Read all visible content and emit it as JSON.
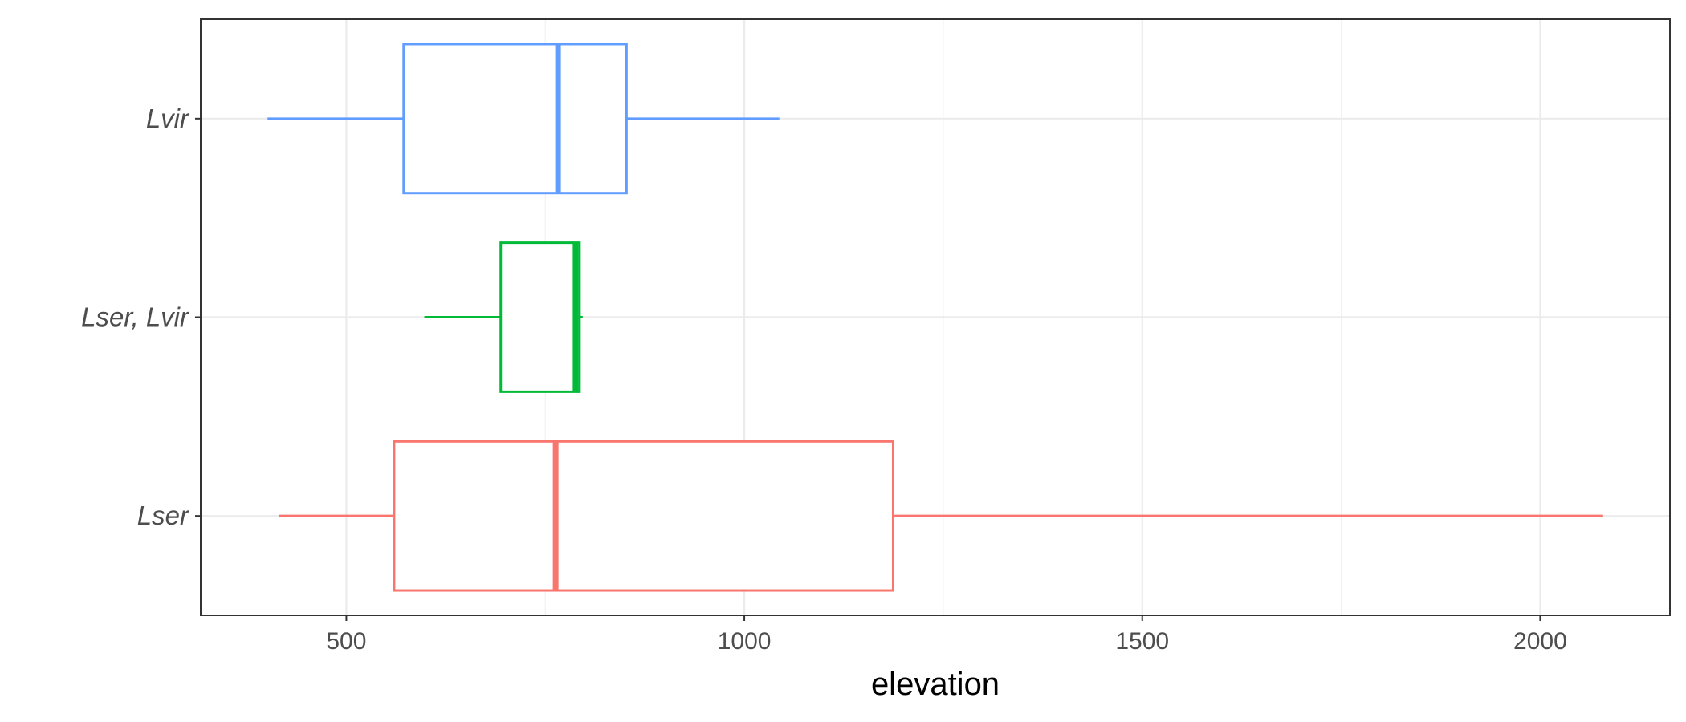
{
  "chart_data": {
    "type": "boxplot",
    "orientation": "horizontal",
    "xlabel": "elevation",
    "ylabel": "",
    "xlim": [
      317,
      2163
    ],
    "x_ticks": [
      500,
      1000,
      1500,
      2000
    ],
    "grid": true,
    "legend": "none",
    "categories": [
      "Lser",
      "Lser, Lvir",
      "Lvir"
    ],
    "series": [
      {
        "category": "Lser",
        "color": "#F8766D",
        "whisker_low": 415,
        "q1": 560,
        "median": 763,
        "q3": 1187,
        "whisker_high": 2078
      },
      {
        "category": "Lser, Lvir",
        "color": "#00BA38",
        "whisker_low": 598,
        "q1": 694,
        "median": 788,
        "q3": 793,
        "whisker_high": 797
      },
      {
        "category": "Lvir",
        "color": "#619CFF",
        "whisker_low": 401,
        "q1": 572,
        "median": 766,
        "q3": 852,
        "whisker_high": 1044
      }
    ]
  }
}
